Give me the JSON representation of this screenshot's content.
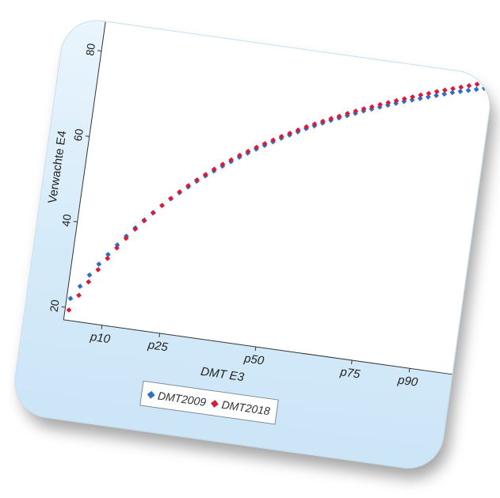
{
  "chart_data": {
    "type": "scatter",
    "title": "",
    "xlabel": "DMT E3",
    "ylabel": "Verwachte E4",
    "xlim": [
      0,
      100
    ],
    "ylim": [
      18,
      85
    ],
    "x_ticks": [
      {
        "value": 10,
        "label": "p10"
      },
      {
        "value": 25,
        "label": "p25"
      },
      {
        "value": 50,
        "label": "p50"
      },
      {
        "value": 75,
        "label": "p75"
      },
      {
        "value": 90,
        "label": "p90"
      }
    ],
    "y_ticks": [
      {
        "value": 20,
        "label": "20"
      },
      {
        "value": 40,
        "label": "40"
      },
      {
        "value": 60,
        "label": "60"
      },
      {
        "value": 80,
        "label": "80"
      }
    ],
    "grid": false,
    "legend_position": "bottom",
    "series": [
      {
        "name": "DMT2009",
        "color": "#2e6fc4",
        "x": [
          1,
          3,
          5,
          7,
          9,
          11,
          13,
          15,
          17,
          19,
          21,
          23,
          25,
          27,
          29,
          31,
          33,
          35,
          37,
          39,
          41,
          43,
          45,
          47,
          49,
          51,
          53,
          55,
          57,
          59,
          61,
          63,
          65,
          67,
          69,
          71,
          73,
          75,
          77,
          79,
          81,
          83,
          85,
          87,
          89,
          91,
          93,
          95,
          97,
          99
        ],
        "y": [
          22.2,
          25.3,
          28.2,
          31.0,
          33.5,
          36.0,
          38.3,
          40.5,
          42.6,
          44.6,
          46.5,
          48.3,
          50.0,
          51.6,
          53.2,
          54.7,
          56.1,
          57.5,
          58.8,
          60.1,
          61.3,
          62.5,
          63.6,
          64.7,
          65.8,
          66.8,
          67.8,
          68.8,
          69.7,
          70.6,
          71.5,
          72.3,
          73.1,
          73.9,
          74.7,
          75.4,
          76.1,
          76.8,
          77.5,
          78.2,
          78.8,
          79.4,
          80.0,
          80.6,
          81.2,
          81.8,
          82.3,
          82.8,
          83.3,
          83.8
        ]
      },
      {
        "name": "DMT2018",
        "color": "#d81b3a",
        "x": [
          1,
          3,
          5,
          7,
          9,
          11,
          13,
          15,
          17,
          19,
          21,
          23,
          25,
          27,
          29,
          31,
          33,
          35,
          37,
          39,
          41,
          43,
          45,
          47,
          49,
          51,
          53,
          55,
          57,
          59,
          61,
          63,
          65,
          67,
          69,
          71,
          73,
          75,
          77,
          79,
          81,
          83,
          85,
          87,
          89,
          91,
          93,
          95,
          97,
          99
        ],
        "y": [
          19.5,
          23.2,
          26.6,
          29.7,
          32.6,
          35.3,
          37.8,
          40.2,
          42.4,
          44.5,
          46.5,
          48.4,
          50.2,
          51.9,
          53.5,
          55.0,
          56.5,
          57.9,
          59.2,
          60.5,
          61.7,
          62.9,
          64.0,
          65.1,
          66.2,
          67.2,
          68.2,
          69.2,
          70.1,
          71.0,
          71.9,
          72.7,
          73.6,
          74.4,
          75.2,
          75.9,
          76.7,
          77.4,
          78.1,
          78.8,
          79.5,
          80.2,
          80.8,
          81.5,
          82.1,
          82.7,
          83.3,
          83.9,
          84.5,
          85.0
        ]
      }
    ]
  }
}
